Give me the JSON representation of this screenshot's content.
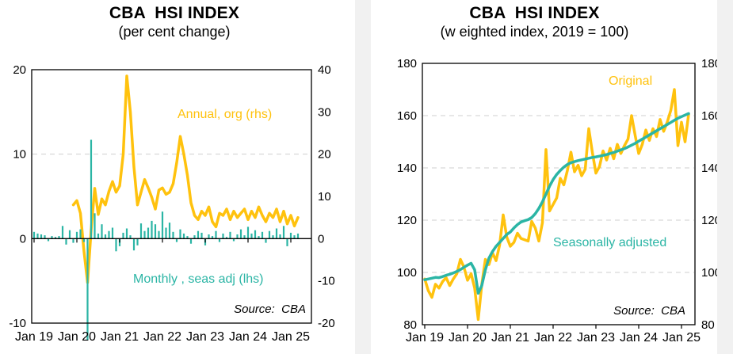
{
  "colors": {
    "gold": "#FFC20E",
    "teal": "#2BB5A5",
    "grid": "#cfcfcf",
    "axis": "#000000",
    "gap": "#f1f1f1"
  },
  "chart_data": [
    {
      "type": "bar",
      "title": "CBA  HSI INDEX",
      "subtitle": "(per cent change)",
      "source": "Source:  CBA",
      "x_ticks": [
        "Jan 19",
        "Jan 20",
        "Jan 21",
        "Jan 22",
        "Jan 23",
        "Jan 24",
        "Jan 25"
      ],
      "axes": {
        "lhs": {
          "min": -10,
          "max": 20,
          "ticks": [
            20,
            10,
            0,
            -10
          ]
        },
        "rhs": {
          "min": -20,
          "max": 40,
          "ticks": [
            40,
            30,
            20,
            10,
            0,
            -10,
            -20
          ]
        }
      },
      "gridlines": {
        "axis": "lhs",
        "values": [
          10
        ]
      },
      "zero_axis": true,
      "months": [
        "2019-01",
        "2019-02",
        "2019-03",
        "2019-04",
        "2019-05",
        "2019-06",
        "2019-07",
        "2019-08",
        "2019-09",
        "2019-10",
        "2019-11",
        "2019-12",
        "2020-01",
        "2020-02",
        "2020-03",
        "2020-04",
        "2020-05",
        "2020-06",
        "2020-07",
        "2020-08",
        "2020-09",
        "2020-10",
        "2020-11",
        "2020-12",
        "2021-01",
        "2021-02",
        "2021-03",
        "2021-04",
        "2021-05",
        "2021-06",
        "2021-07",
        "2021-08",
        "2021-09",
        "2021-10",
        "2021-11",
        "2021-12",
        "2022-01",
        "2022-02",
        "2022-03",
        "2022-04",
        "2022-05",
        "2022-06",
        "2022-07",
        "2022-08",
        "2022-09",
        "2022-10",
        "2022-11",
        "2022-12",
        "2023-01",
        "2023-02",
        "2023-03",
        "2023-04",
        "2023-05",
        "2023-06",
        "2023-07",
        "2023-08",
        "2023-09",
        "2023-10",
        "2023-11",
        "2023-12",
        "2024-01",
        "2024-02",
        "2024-03",
        "2024-04",
        "2024-05",
        "2024-06",
        "2024-07",
        "2024-08",
        "2024-09",
        "2024-10",
        "2024-11",
        "2024-12",
        "2025-01",
        "2025-02",
        "2025-03"
      ],
      "series": [
        {
          "name": "Annual, org (rhs)",
          "type": "line",
          "axis": "rhs",
          "color": "#FFC20E",
          "values": [
            null,
            null,
            null,
            null,
            null,
            null,
            null,
            null,
            null,
            null,
            null,
            8.0,
            9.0,
            6.0,
            -3.0,
            -10.4,
            2.0,
            11.9,
            5.7,
            9.4,
            8.0,
            11.2,
            13.5,
            11.0,
            12.5,
            20.0,
            38.5,
            30.0,
            17.0,
            8.0,
            11.0,
            14.0,
            12.0,
            9.8,
            7.0,
            11.5,
            12.0,
            10.5,
            11.0,
            13.0,
            18.0,
            24.2,
            20.0,
            15.0,
            8.5,
            5.5,
            4.5,
            6.5,
            5.5,
            7.5,
            4.0,
            2.8,
            6.0,
            5.5,
            7.0,
            4.5,
            6.5,
            5.0,
            6.0,
            7.0,
            4.5,
            6.5,
            5.0,
            7.5,
            5.5,
            4.0,
            6.0,
            5.0,
            7.0,
            4.0,
            6.5,
            3.5,
            5.5,
            3.0,
            5.0
          ]
        },
        {
          "name": "Monthly , seas adj (lhs)",
          "type": "bar",
          "axis": "lhs",
          "color": "#2BB5A5",
          "values": [
            0.8,
            0.6,
            0.5,
            0.4,
            -0.3,
            0.3,
            0.2,
            0.3,
            1.5,
            -0.7,
            1.0,
            -0.5,
            0.8,
            1.1,
            -0.4,
            -12.0,
            11.7,
            3.0,
            0.6,
            1.7,
            0.5,
            0.9,
            1.3,
            -1.5,
            -0.9,
            0.7,
            1.2,
            0.4,
            -1.4,
            -0.8,
            1.8,
            0.9,
            1.3,
            2.1,
            1.7,
            0.9,
            3.2,
            1.3,
            1.9,
            0.8,
            -0.4,
            1.1,
            0.6,
            0.3,
            -0.6,
            0.4,
            0.9,
            0.7,
            -0.8,
            0.5,
            0.3,
            0.9,
            -0.4,
            0.6,
            0.2,
            0.8,
            -0.3,
            0.5,
            1.1,
            0.4,
            1.4,
            0.6,
            1.0,
            0.3,
            0.8,
            -0.5,
            0.9,
            0.4,
            1.2,
            0.5,
            1.5,
            -0.9,
            0.7,
            0.4,
            0.6
          ]
        }
      ]
    },
    {
      "type": "line",
      "title": "CBA  HSI INDEX",
      "subtitle": "(w eighted index, 2019 = 100)",
      "source": "Source:  CBA",
      "x_ticks": [
        "Jan 19",
        "Jan 20",
        "Jan 21",
        "Jan 22",
        "Jan 23",
        "Jan 24",
        "Jan 25"
      ],
      "axes": {
        "lhs": {
          "min": 80,
          "max": 180,
          "ticks": [
            180,
            160,
            140,
            120,
            100,
            80
          ]
        },
        "rhs": {
          "min": 80,
          "max": 180,
          "ticks": [
            180,
            160,
            140,
            120,
            100,
            80
          ]
        }
      },
      "gridlines": {
        "axis": "lhs",
        "values": [
          160,
          140,
          120,
          100
        ]
      },
      "zero_axis": false,
      "months": [
        "2019-01",
        "2019-02",
        "2019-03",
        "2019-04",
        "2019-05",
        "2019-06",
        "2019-07",
        "2019-08",
        "2019-09",
        "2019-10",
        "2019-11",
        "2019-12",
        "2020-01",
        "2020-02",
        "2020-03",
        "2020-04",
        "2020-05",
        "2020-06",
        "2020-07",
        "2020-08",
        "2020-09",
        "2020-10",
        "2020-11",
        "2020-12",
        "2021-01",
        "2021-02",
        "2021-03",
        "2021-04",
        "2021-05",
        "2021-06",
        "2021-07",
        "2021-08",
        "2021-09",
        "2021-10",
        "2021-11",
        "2021-12",
        "2022-01",
        "2022-02",
        "2022-03",
        "2022-04",
        "2022-05",
        "2022-06",
        "2022-07",
        "2022-08",
        "2022-09",
        "2022-10",
        "2022-11",
        "2022-12",
        "2023-01",
        "2023-02",
        "2023-03",
        "2023-04",
        "2023-05",
        "2023-06",
        "2023-07",
        "2023-08",
        "2023-09",
        "2023-10",
        "2023-11",
        "2023-12",
        "2024-01",
        "2024-02",
        "2024-03",
        "2024-04",
        "2024-05",
        "2024-06",
        "2024-07",
        "2024-08",
        "2024-09",
        "2024-10",
        "2024-11",
        "2024-12",
        "2025-01",
        "2025-02",
        "2025-03"
      ],
      "series": [
        {
          "name": "Original",
          "type": "line",
          "axis": "lhs",
          "color": "#FFC20E",
          "values": [
            97.5,
            93.0,
            90.5,
            95.5,
            94.0,
            96.5,
            98.0,
            95.0,
            97.5,
            99.5,
            105.0,
            102.0,
            97.0,
            99.5,
            94.0,
            82.0,
            95.5,
            105.0,
            103.0,
            107.5,
            104.5,
            110.5,
            122.0,
            113.5,
            110.0,
            111.5,
            115.0,
            113.0,
            112.5,
            112.0,
            119.5,
            117.0,
            112.0,
            119.0,
            147.0,
            123.5,
            126.0,
            128.5,
            136.0,
            133.5,
            139.0,
            146.0,
            138.5,
            141.0,
            137.0,
            139.5,
            155.0,
            146.0,
            138.0,
            140.5,
            146.5,
            143.0,
            147.5,
            143.5,
            149.0,
            145.5,
            148.5,
            151.0,
            160.0,
            152.5,
            145.5,
            149.0,
            154.5,
            150.5,
            155.0,
            152.0,
            158.5,
            154.0,
            157.5,
            162.0,
            170.0,
            148.5,
            157.5,
            150.0,
            160.5
          ]
        },
        {
          "name": "Seasonally adjusted",
          "type": "line",
          "axis": "lhs",
          "color": "#2BB5A5",
          "values": [
            97.2,
            97.5,
            97.8,
            98.1,
            98.0,
            98.4,
            98.9,
            99.3,
            99.8,
            100.4,
            101.1,
            102.0,
            102.8,
            103.5,
            101.0,
            92.0,
            95.0,
            101.0,
            105.5,
            108.0,
            110.0,
            111.5,
            113.0,
            114.5,
            115.5,
            117.0,
            118.3,
            119.3,
            119.8,
            120.2,
            121.0,
            122.5,
            124.5,
            127.0,
            130.0,
            133.0,
            135.5,
            137.5,
            139.0,
            140.3,
            141.3,
            142.0,
            142.4,
            142.8,
            143.1,
            143.4,
            143.7,
            144.0,
            144.2,
            144.5,
            144.8,
            145.1,
            145.5,
            145.9,
            146.4,
            146.9,
            147.4,
            148.0,
            148.7,
            149.4,
            150.2,
            151.0,
            151.8,
            152.6,
            153.4,
            154.2,
            155.0,
            155.8,
            156.6,
            157.4,
            158.2,
            159.0,
            159.6,
            160.2,
            160.8
          ]
        }
      ]
    }
  ]
}
